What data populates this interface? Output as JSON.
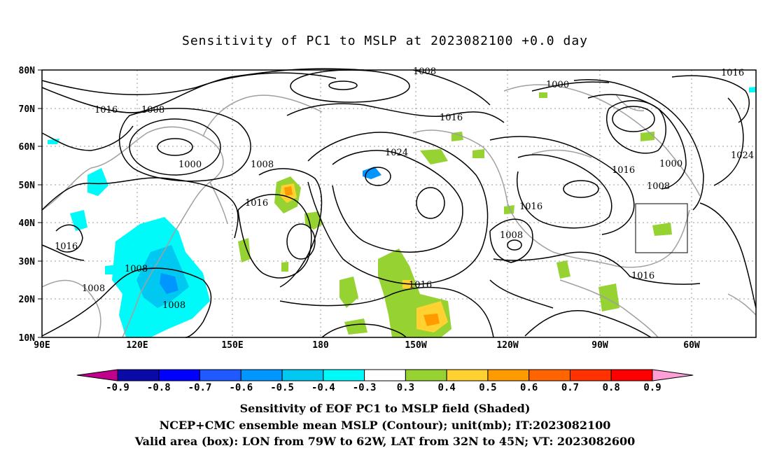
{
  "title": "Sensitivity of PC1 to MSLP at 2023082100 +0.0 day",
  "map": {
    "lat_labels": [
      "80N",
      "70N",
      "60N",
      "50N",
      "40N",
      "30N",
      "20N",
      "10N"
    ],
    "lon_labels": [
      "90E",
      "120E",
      "150E",
      "180",
      "150W",
      "120W",
      "90W",
      "60W"
    ],
    "contour_labels": [
      {
        "text": "1008"
      },
      {
        "text": "1016"
      },
      {
        "text": "1016"
      },
      {
        "text": "1008"
      },
      {
        "text": "1000"
      },
      {
        "text": "1000"
      },
      {
        "text": "1008"
      },
      {
        "text": "1016"
      },
      {
        "text": "1024"
      },
      {
        "text": "1016"
      },
      {
        "text": "1016"
      },
      {
        "text": "1008"
      },
      {
        "text": "1016"
      },
      {
        "text": "1000"
      },
      {
        "text": "1008"
      },
      {
        "text": "1016"
      },
      {
        "text": "1008"
      },
      {
        "text": "1008"
      },
      {
        "text": "1008"
      },
      {
        "text": "1016"
      },
      {
        "text": "1016"
      },
      {
        "text": "1024"
      }
    ],
    "valid_box": {
      "lon_from": "79W",
      "lon_to": "62W",
      "lat_from": "32N",
      "lat_to": "45N"
    },
    "colors": {
      "contour": "#000000",
      "coast": "#a0a0a0",
      "grid": "#9a9a9a"
    }
  },
  "colorbar": {
    "labels": [
      "-0.9",
      "-0.8",
      "-0.7",
      "-0.6",
      "-0.5",
      "-0.4",
      "-0.3",
      "0.3",
      "0.4",
      "0.5",
      "0.6",
      "0.7",
      "0.8",
      "0.9"
    ],
    "colors": [
      "#c0008c",
      "#0a0aa8",
      "#0000ff",
      "#1e5aff",
      "#0096ff",
      "#00c8f0",
      "#00fafa",
      "#ffffff",
      "#96d232",
      "#ffd232",
      "#ff9b00",
      "#ff6400",
      "#ff3200",
      "#ff0000",
      "#ff9fd5"
    ]
  },
  "captions": {
    "line1": "Sensitivity of EOF PC1 to MSLP field (Shaded)",
    "line2": "NCEP+CMC ensemble mean MSLP (Contour); unit(mb); IT:2023082100",
    "line3": "Valid area (box): LON from 79W to 62W, LAT from 32N to 45N; VT: 2023082600"
  }
}
